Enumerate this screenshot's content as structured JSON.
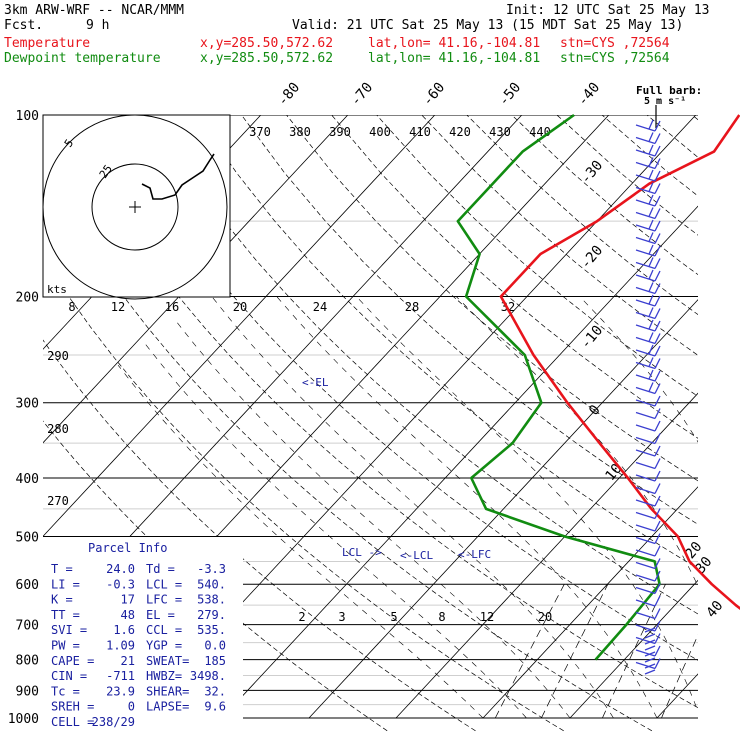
{
  "header": {
    "model": "3km ARW-WRF -- NCAR/MMM",
    "init": "Init: 12 UTC Sat 25 May 13",
    "fcst_label": "Fcst.",
    "fcst_value": "9 h",
    "valid": "Valid: 21 UTC Sat 25 May 13 (15 MDT Sat 25 May 13)",
    "temp_label": "Temperature",
    "dew_label": "Dewpoint temperature",
    "xy": "x,y=285.50,572.62",
    "latlon": "lat,lon= 41.16,-104.81",
    "stn": "stn=CYS ,72564"
  },
  "colors": {
    "temperature": "#e8141c",
    "dewpoint": "#118c11",
    "wind_barbs": "#3b3fd0",
    "parcel_text": "#1a20a0"
  },
  "chart_data": {
    "type": "line",
    "chart_kind": "skew-T log-p sounding",
    "y_axis": {
      "label": "pressure (hPa)",
      "log_scale": true,
      "ticks": [
        "100",
        "200",
        "300",
        "400",
        "500",
        "600",
        "700",
        "800",
        "900",
        "1000"
      ]
    },
    "isotherm_labels": [
      "-80",
      "-70",
      "-60",
      "-50",
      "-40",
      "-30",
      "-20",
      "-10",
      "0",
      "10",
      "20",
      "30",
      "40"
    ],
    "theta_labels": [
      "370",
      "380",
      "390",
      "400",
      "410",
      "420",
      "430",
      "440"
    ],
    "theta_labels_lower": [
      "290",
      "280",
      "270"
    ],
    "mixing_ratio_labels": [
      "2",
      "3",
      "5",
      "8",
      "12",
      "20"
    ],
    "hodograph": {
      "units_label": "kts",
      "rings": [
        "5",
        "25"
      ],
      "speed_ticks": [
        "8",
        "12",
        "16",
        "20",
        "24",
        "28",
        "32"
      ]
    },
    "barb_key": "Full barb:",
    "barb_key_units": "5 m s⁻¹",
    "series": [
      {
        "name": "Temperature",
        "color": "#e8141c",
        "points": [
          [
            1000,
            null
          ],
          [
            800,
            20.6
          ],
          [
            750,
            17
          ],
          [
            700,
            12
          ],
          [
            650,
            7
          ],
          [
            600,
            2
          ],
          [
            550,
            -3
          ],
          [
            500,
            -7
          ],
          [
            450,
            -13
          ],
          [
            400,
            -19
          ],
          [
            350,
            -26
          ],
          [
            300,
            -34
          ],
          [
            250,
            -43
          ],
          [
            200,
            -53
          ],
          [
            170,
            -53
          ],
          [
            150,
            -50
          ],
          [
            130,
            -48
          ],
          [
            115,
            -44
          ],
          [
            100,
            -45
          ]
        ]
      },
      {
        "name": "Dewpoint temperature",
        "color": "#118c11",
        "points": [
          [
            800,
            -3.3
          ],
          [
            700,
            -3.5
          ],
          [
            600,
            -4
          ],
          [
            550,
            -7
          ],
          [
            500,
            -20
          ],
          [
            450,
            -32
          ],
          [
            400,
            -37
          ],
          [
            350,
            -36
          ],
          [
            300,
            -37
          ],
          [
            250,
            -44
          ],
          [
            200,
            -57
          ],
          [
            170,
            -60
          ],
          [
            150,
            -66
          ],
          [
            130,
            -66
          ],
          [
            115,
            -66
          ],
          [
            100,
            -64
          ]
        ]
      }
    ],
    "annotations": [
      "<-EL",
      "LCL ->",
      "<-LCL",
      "<-LFC"
    ]
  },
  "parcel": {
    "title": "Parcel Info",
    "rows": [
      [
        "T  =",
        "24.0",
        "Td =",
        "-3.3"
      ],
      [
        "LI =",
        "-0.3",
        "LCL =",
        "540."
      ],
      [
        "K  =",
        "17",
        "LFC =",
        "538."
      ],
      [
        "TT =",
        "48",
        "EL =",
        "279."
      ],
      [
        "SVI =",
        "1.6",
        "CCL =",
        "535."
      ],
      [
        "PW =",
        "1.09",
        "YGP =",
        "0.0"
      ],
      [
        "CAPE =",
        "21",
        "SWEAT=",
        "185"
      ],
      [
        "CIN =",
        "-711",
        "HWBZ=",
        "3498."
      ],
      [
        "Tc =",
        "23.9",
        "SHEAR=",
        "32."
      ],
      [
        "SREH =",
        "0",
        "LAPSE=",
        "9.6"
      ],
      [
        "CELL =",
        "238/29",
        "",
        ""
      ]
    ]
  }
}
